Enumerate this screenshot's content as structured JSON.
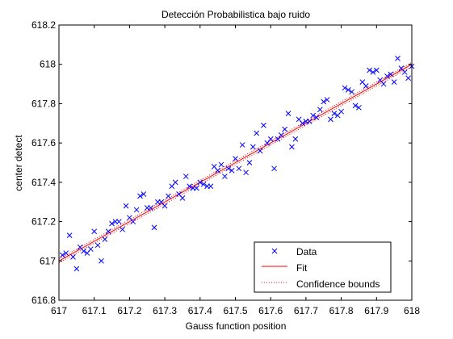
{
  "chart_data": {
    "type": "scatter",
    "title": "Detección Probabilistica bajo ruido",
    "xlabel": "Gauss function position",
    "ylabel": "center detect",
    "xlim": [
      617,
      618
    ],
    "ylim": [
      616.8,
      618.2
    ],
    "x_ticks": [
      "617",
      "617.1",
      "617.2",
      "617.3",
      "617.4",
      "617.5",
      "617.6",
      "617.7",
      "617.8",
      "617.9",
      "618"
    ],
    "y_ticks": [
      "616.8",
      "617",
      "617.2",
      "617.4",
      "617.6",
      "617.8",
      "618",
      "618.2"
    ],
    "grid": false,
    "legend_position": "bottom-right",
    "legend": [
      {
        "label": "Data",
        "marker": "x",
        "color": "#0000ff"
      },
      {
        "label": "Fit",
        "line": "solid",
        "color": "#ff0000"
      },
      {
        "label": "Confidence bounds",
        "line": "dotted",
        "color": "#ff0000"
      }
    ],
    "series": [
      {
        "name": "Data",
        "type": "scatter",
        "marker": "x",
        "color": "#0000ff",
        "x": [
          617.01,
          617.02,
          617.03,
          617.04,
          617.05,
          617.06,
          617.07,
          617.08,
          617.09,
          617.1,
          617.11,
          617.12,
          617.13,
          617.14,
          617.15,
          617.16,
          617.17,
          617.18,
          617.19,
          617.2,
          617.21,
          617.22,
          617.23,
          617.24,
          617.25,
          617.26,
          617.27,
          617.28,
          617.29,
          617.3,
          617.31,
          617.32,
          617.33,
          617.34,
          617.35,
          617.36,
          617.37,
          617.38,
          617.39,
          617.4,
          617.41,
          617.42,
          617.43,
          617.44,
          617.45,
          617.46,
          617.47,
          617.48,
          617.49,
          617.5,
          617.51,
          617.52,
          617.53,
          617.54,
          617.55,
          617.56,
          617.57,
          617.58,
          617.59,
          617.6,
          617.61,
          617.62,
          617.63,
          617.64,
          617.65,
          617.66,
          617.67,
          617.68,
          617.69,
          617.7,
          617.71,
          617.72,
          617.73,
          617.74,
          617.75,
          617.76,
          617.77,
          617.78,
          617.79,
          617.8,
          617.81,
          617.82,
          617.83,
          617.84,
          617.85,
          617.86,
          617.87,
          617.88,
          617.89,
          617.9,
          617.91,
          617.92,
          617.93,
          617.94,
          617.95,
          617.96,
          617.97,
          617.98,
          617.99,
          618.0
        ],
        "y": [
          617.03,
          617.04,
          617.13,
          617.02,
          616.96,
          617.07,
          617.05,
          617.04,
          617.06,
          617.15,
          617.08,
          617.0,
          617.11,
          617.15,
          617.19,
          617.2,
          617.2,
          617.16,
          617.28,
          617.22,
          617.2,
          617.26,
          617.33,
          617.34,
          617.27,
          617.27,
          617.17,
          617.3,
          617.3,
          617.28,
          617.33,
          617.38,
          617.4,
          617.34,
          617.32,
          617.43,
          617.38,
          617.37,
          617.37,
          617.4,
          617.39,
          617.38,
          617.38,
          617.48,
          617.46,
          617.49,
          617.43,
          617.47,
          617.46,
          617.52,
          617.47,
          617.59,
          617.45,
          617.5,
          617.58,
          617.65,
          617.56,
          617.69,
          617.6,
          617.62,
          617.47,
          617.62,
          617.64,
          617.67,
          617.75,
          617.58,
          617.62,
          617.72,
          617.7,
          617.71,
          617.71,
          617.74,
          617.73,
          617.77,
          617.81,
          617.82,
          617.72,
          617.75,
          617.74,
          617.76,
          617.88,
          617.87,
          617.86,
          617.79,
          617.78,
          617.91,
          617.89,
          617.97,
          617.96,
          617.97,
          617.92,
          617.9,
          617.94,
          617.95,
          617.91,
          618.03,
          617.98,
          617.96,
          617.93,
          617.99
        ]
      },
      {
        "name": "Fit",
        "type": "line",
        "color": "#ff0000",
        "style": "solid",
        "x": [
          617,
          618
        ],
        "y": [
          617.0,
          618.0
        ]
      },
      {
        "name": "Confidence bounds",
        "type": "line",
        "color": "#ff0000",
        "style": "dotted",
        "x": [
          617,
          618
        ],
        "y": [
          617.01,
          618.01
        ]
      },
      {
        "name": "Confidence bounds",
        "type": "line",
        "color": "#ff0000",
        "style": "dotted",
        "x": [
          617,
          618
        ],
        "y": [
          616.99,
          617.99
        ]
      }
    ]
  }
}
